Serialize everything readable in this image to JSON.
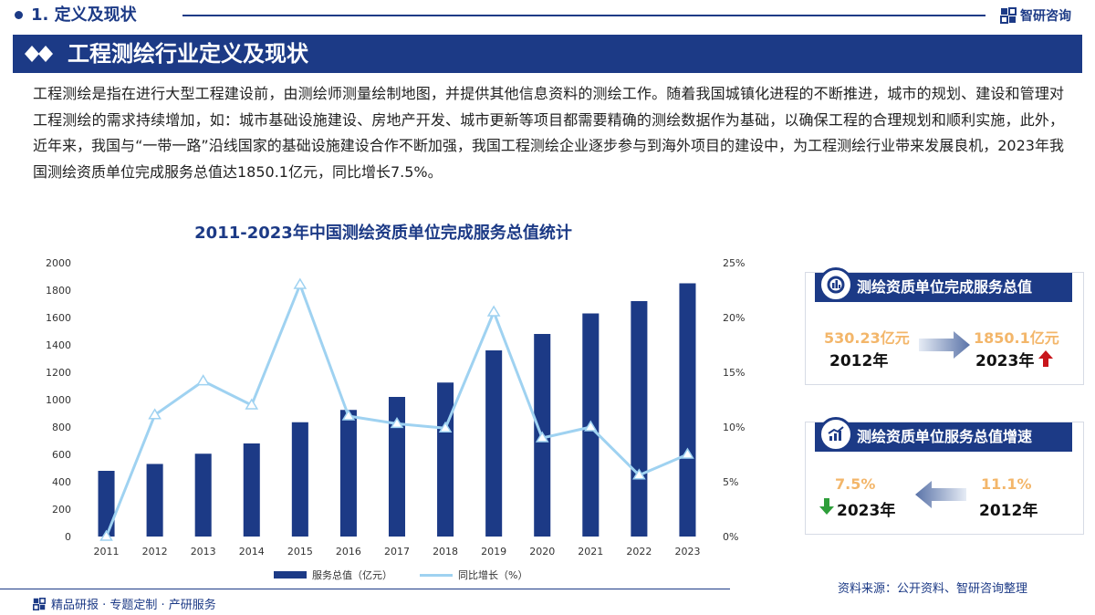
{
  "header": {
    "section_title": "1. 定义及现状",
    "logo_text": "智研咨询"
  },
  "banner": {
    "title": "工程测绘行业定义及现状"
  },
  "intro": "工程测绘是指在进行大型工程建设前，由测绘师测量绘制地图，并提供其他信息资料的测绘工作。随着我国城镇化进程的不断推进，城市的规划、建设和管理对工程测绘的需求持续增加，如：城市基础设施建设、房地产开发、城市更新等项目都需要精确的测绘数据作为基础，以确保工程的合理规划和顺利实施，此外，近年来，我国与“一带一路”沿线国家的基础设施建设合作不断加强，我国工程测绘企业逐步参与到海外项目的建设中，为工程测绘行业带来发展良机，2023年我国测绘资质单位完成服务总值达1850.1亿元，同比增长7.5%。",
  "chart_data": {
    "type": "bar",
    "title": "2011-2023年中国测绘资质单位完成服务总值统计",
    "categories": [
      "2011",
      "2012",
      "2013",
      "2014",
      "2015",
      "2016",
      "2017",
      "2018",
      "2019",
      "2020",
      "2021",
      "2022",
      "2023"
    ],
    "series": [
      {
        "name": "服务总值（亿元）",
        "type": "bar",
        "axis": "left",
        "values": [
          480,
          530.23,
          605,
          680,
          835,
          925,
          1020,
          1125,
          1360,
          1480,
          1630,
          1720,
          1850.1
        ]
      },
      {
        "name": "同比增长（%）",
        "type": "line",
        "axis": "right",
        "values": [
          0,
          11.1,
          14.2,
          12.0,
          23.0,
          11.0,
          10.3,
          9.9,
          20.5,
          9.0,
          10.0,
          5.6,
          7.5
        ]
      }
    ],
    "ylim_left": [
      0,
      2000
    ],
    "yticks_left": [
      "0",
      "200",
      "400",
      "600",
      "800",
      "1000",
      "1200",
      "1400",
      "1600",
      "1800",
      "2000"
    ],
    "ylim_right": [
      0,
      25
    ],
    "yticks_right": [
      "0%",
      "5%",
      "10%",
      "15%",
      "20%",
      "25%"
    ],
    "colors": {
      "bar": "#1c3a86",
      "line": "#9fd2f1"
    },
    "legend": "bottom",
    "grid": false
  },
  "legend": {
    "bar_label": "服务总值（亿元）",
    "line_label": "同比增长（%）"
  },
  "card1": {
    "title": "测绘资质单位完成服务总值",
    "icon": "chart-pie-icon",
    "left_value": "530.23亿元",
    "left_year": "2012年",
    "right_value": "1850.1亿元",
    "right_year": "2023年",
    "trend_icon": "up-arrow-icon"
  },
  "card2": {
    "title": "测绘资质单位服务总值增速",
    "icon": "growth-chart-icon",
    "left_value": "7.5%",
    "left_year": "2023年",
    "right_value": "11.1%",
    "right_year": "2012年",
    "trend_icon": "down-arrow-icon"
  },
  "footer": {
    "tagline": "精品研报 · 专题定制 · 产研服务",
    "source": "资料来源：公开资料、智研咨询整理"
  },
  "theme": {
    "primary": "#1c3a86",
    "accent_gold": "#f3b66a",
    "up_red": "#c8151b",
    "down_green": "#2e9e3a"
  }
}
